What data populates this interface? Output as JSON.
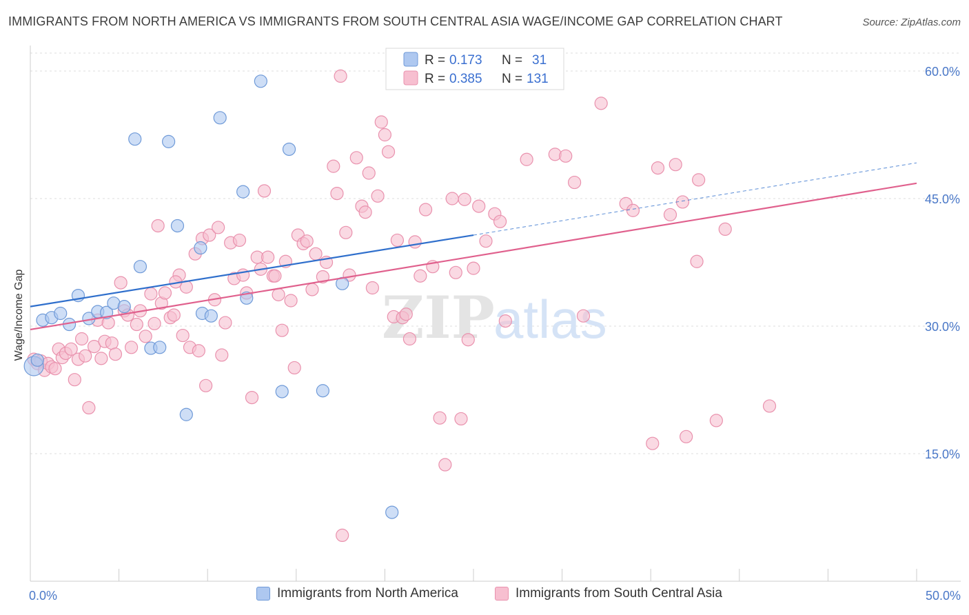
{
  "title": "IMMIGRANTS FROM NORTH AMERICA VS IMMIGRANTS FROM SOUTH CENTRAL ASIA WAGE/INCOME GAP CORRELATION CHART",
  "source": "Source: ZipAtlas.com",
  "watermark": {
    "zip": "ZIP",
    "atlas": "atlas"
  },
  "colors": {
    "blue_fill": "#aec8f0",
    "blue_stroke": "#6f9ad8",
    "blue_line": "#2f6fcc",
    "pink_fill": "#f7bfd0",
    "pink_stroke": "#e991ad",
    "pink_line": "#e0608d",
    "tick_text": "#4a78c8",
    "grid": "#dddddd"
  },
  "stats": {
    "r_label": "R =",
    "n_label": "N =",
    "rows": [
      {
        "series": "blue",
        "r": "0.173",
        "n": "31"
      },
      {
        "series": "pink",
        "r": "0.385",
        "n": "131"
      }
    ]
  },
  "legend": {
    "items": [
      {
        "series": "blue",
        "label": "Immigrants from North America"
      },
      {
        "series": "pink",
        "label": "Immigrants from South Central Asia"
      }
    ]
  },
  "chart_data": {
    "type": "scatter",
    "title": "IMMIGRANTS FROM NORTH AMERICA VS IMMIGRANTS FROM SOUTH CENTRAL ASIA WAGE/INCOME GAP CORRELATION CHART",
    "xlabel": "",
    "ylabel": "Wage/Income Gap",
    "xlim": [
      0,
      50
    ],
    "ylim": [
      0,
      63
    ],
    "x_ticks": [
      {
        "value": 0,
        "label": "0.0%"
      },
      {
        "value": 50,
        "label": "50.0%"
      }
    ],
    "y_ticks": [
      {
        "value": 15,
        "label": "15.0%"
      },
      {
        "value": 30,
        "label": "30.0%"
      },
      {
        "value": 45,
        "label": "45.0%"
      },
      {
        "value": 60,
        "label": "60.0%"
      }
    ],
    "grid": true,
    "legend_position": "bottom",
    "series": [
      {
        "name": "Immigrants from North America",
        "color": "#aec8f0",
        "r": 0.173,
        "n": 31,
        "trend": {
          "x_start": 0,
          "y_start": 32.3,
          "x_end": 25,
          "y_end": 40.7,
          "dashed_to_x": 50,
          "dashed_to_y": 49.2
        },
        "points": [
          [
            0.2,
            25.3
          ],
          [
            0.7,
            30.7
          ],
          [
            1.2,
            31.0
          ],
          [
            1.7,
            31.5
          ],
          [
            2.2,
            30.2
          ],
          [
            2.7,
            33.6
          ],
          [
            3.3,
            30.9
          ],
          [
            3.8,
            31.7
          ],
          [
            4.3,
            31.6
          ],
          [
            4.7,
            32.7
          ],
          [
            5.3,
            32.3
          ],
          [
            5.9,
            52.0
          ],
          [
            6.2,
            37.0
          ],
          [
            6.8,
            27.4
          ],
          [
            7.3,
            27.5
          ],
          [
            7.8,
            51.7
          ],
          [
            8.3,
            41.8
          ],
          [
            8.8,
            19.6
          ],
          [
            9.6,
            39.2
          ],
          [
            9.7,
            31.5
          ],
          [
            10.2,
            31.2
          ],
          [
            10.7,
            54.5
          ],
          [
            12.0,
            45.8
          ],
          [
            12.2,
            33.3
          ],
          [
            13.0,
            58.8
          ],
          [
            14.2,
            22.3
          ],
          [
            14.6,
            50.8
          ],
          [
            16.5,
            22.4
          ],
          [
            17.6,
            35.0
          ],
          [
            20.4,
            8.1
          ],
          [
            0.4,
            26.0
          ]
        ]
      },
      {
        "name": "Immigrants from South Central Asia",
        "color": "#f7bfd0",
        "r": 0.385,
        "n": 131,
        "trend": {
          "x_start": 0,
          "y_start": 29.6,
          "x_end": 50,
          "y_end": 46.8
        },
        "points": [
          [
            0.2,
            26.1
          ],
          [
            0.4,
            25.6
          ],
          [
            0.6,
            25.9
          ],
          [
            0.8,
            24.8
          ],
          [
            1.0,
            25.6
          ],
          [
            1.2,
            25.2
          ],
          [
            1.4,
            25.0
          ],
          [
            1.6,
            27.3
          ],
          [
            1.8,
            26.3
          ],
          [
            2.0,
            26.8
          ],
          [
            2.3,
            27.3
          ],
          [
            2.5,
            23.7
          ],
          [
            2.7,
            26.1
          ],
          [
            2.9,
            28.5
          ],
          [
            3.1,
            26.5
          ],
          [
            3.3,
            20.4
          ],
          [
            3.6,
            27.6
          ],
          [
            3.8,
            30.7
          ],
          [
            4.0,
            26.2
          ],
          [
            4.2,
            28.2
          ],
          [
            4.4,
            30.4
          ],
          [
            4.6,
            28.0
          ],
          [
            4.8,
            26.7
          ],
          [
            5.1,
            35.1
          ],
          [
            5.3,
            31.8
          ],
          [
            5.5,
            31.3
          ],
          [
            5.7,
            27.5
          ],
          [
            6.0,
            30.2
          ],
          [
            6.2,
            31.8
          ],
          [
            6.5,
            28.8
          ],
          [
            6.8,
            33.8
          ],
          [
            7.0,
            30.3
          ],
          [
            7.2,
            41.8
          ],
          [
            7.4,
            32.7
          ],
          [
            7.6,
            33.9
          ],
          [
            7.9,
            31.0
          ],
          [
            8.1,
            31.3
          ],
          [
            8.4,
            36.0
          ],
          [
            8.6,
            28.9
          ],
          [
            8.8,
            34.6
          ],
          [
            9.0,
            27.5
          ],
          [
            9.3,
            38.5
          ],
          [
            9.5,
            27.1
          ],
          [
            9.7,
            40.3
          ],
          [
            9.9,
            23.0
          ],
          [
            10.1,
            40.7
          ],
          [
            10.4,
            33.1
          ],
          [
            10.6,
            41.6
          ],
          [
            10.8,
            26.6
          ],
          [
            11.0,
            30.4
          ],
          [
            11.3,
            39.8
          ],
          [
            11.5,
            35.6
          ],
          [
            11.8,
            40.1
          ],
          [
            12.0,
            36.0
          ],
          [
            12.2,
            33.9
          ],
          [
            12.5,
            21.6
          ],
          [
            12.8,
            38.1
          ],
          [
            13.0,
            36.7
          ],
          [
            13.2,
            45.9
          ],
          [
            13.4,
            38.1
          ],
          [
            13.7,
            35.9
          ],
          [
            14.0,
            33.7
          ],
          [
            14.2,
            29.5
          ],
          [
            14.4,
            37.6
          ],
          [
            14.7,
            33.0
          ],
          [
            14.9,
            25.1
          ],
          [
            15.1,
            40.7
          ],
          [
            15.4,
            39.7
          ],
          [
            15.6,
            40.0
          ],
          [
            15.9,
            34.3
          ],
          [
            16.1,
            38.5
          ],
          [
            16.5,
            35.8
          ],
          [
            16.7,
            37.5
          ],
          [
            17.1,
            48.8
          ],
          [
            17.3,
            45.6
          ],
          [
            17.6,
            5.4
          ],
          [
            17.8,
            41.0
          ],
          [
            18.0,
            36.0
          ],
          [
            18.4,
            49.8
          ],
          [
            18.7,
            44.1
          ],
          [
            18.9,
            43.4
          ],
          [
            19.1,
            48.0
          ],
          [
            19.3,
            34.5
          ],
          [
            19.6,
            45.3
          ],
          [
            19.8,
            54.0
          ],
          [
            20.0,
            52.5
          ],
          [
            20.2,
            50.5
          ],
          [
            20.5,
            31.1
          ],
          [
            20.7,
            40.1
          ],
          [
            21.0,
            31.0
          ],
          [
            21.2,
            31.4
          ],
          [
            21.4,
            28.5
          ],
          [
            21.7,
            39.9
          ],
          [
            22.0,
            35.9
          ],
          [
            22.3,
            43.7
          ],
          [
            22.7,
            37.0
          ],
          [
            23.1,
            19.2
          ],
          [
            23.4,
            13.7
          ],
          [
            23.8,
            45.0
          ],
          [
            24.0,
            36.3
          ],
          [
            24.3,
            19.1
          ],
          [
            24.5,
            44.9
          ],
          [
            24.7,
            28.4
          ],
          [
            25.0,
            36.8
          ],
          [
            25.3,
            44.1
          ],
          [
            25.7,
            40.0
          ],
          [
            26.2,
            43.2
          ],
          [
            26.5,
            42.3
          ],
          [
            26.8,
            30.6
          ],
          [
            28.0,
            49.6
          ],
          [
            29.6,
            50.2
          ],
          [
            30.2,
            50.0
          ],
          [
            30.7,
            46.9
          ],
          [
            31.2,
            31.2
          ],
          [
            32.2,
            56.2
          ],
          [
            33.6,
            44.4
          ],
          [
            34.0,
            43.6
          ],
          [
            35.1,
            16.2
          ],
          [
            35.4,
            48.6
          ],
          [
            36.1,
            43.1
          ],
          [
            36.4,
            49.0
          ],
          [
            36.8,
            44.6
          ],
          [
            37.0,
            17.0
          ],
          [
            37.6,
            37.6
          ],
          [
            37.7,
            47.2
          ],
          [
            38.7,
            18.9
          ],
          [
            39.2,
            41.4
          ],
          [
            41.7,
            20.6
          ],
          [
            17.5,
            59.4
          ],
          [
            8.2,
            35.2
          ],
          [
            13.8,
            35.9
          ]
        ]
      }
    ]
  }
}
